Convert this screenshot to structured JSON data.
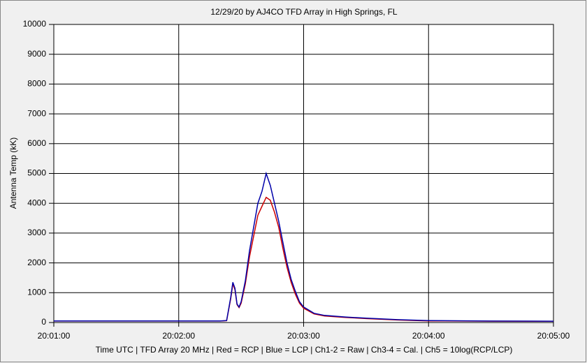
{
  "chart_data": {
    "type": "line",
    "title": "12/29/20  by  AJ4CO TFD Array  in  High Springs, FL",
    "y_label": "Antenna Temp (kK)",
    "footer": "Time UTC | TFD Array 20 MHz | Red = RCP | Blue = LCP | Ch1-2 = Raw | Ch3-4 = Cal. | Ch5 = 10log(RCP/LCP)",
    "x": [
      "20:01:00",
      "20:01:30",
      "20:02:00",
      "20:02:20",
      "20:02:23",
      "20:02:25",
      "20:02:26",
      "20:02:27",
      "20:02:28",
      "20:02:29",
      "20:02:30",
      "20:02:32",
      "20:02:34",
      "20:02:36",
      "20:02:38",
      "20:02:40",
      "20:02:42",
      "20:02:44",
      "20:02:46",
      "20:02:48",
      "20:02:50",
      "20:02:52",
      "20:02:54",
      "20:02:56",
      "20:02:58",
      "20:03:00",
      "20:03:05",
      "20:03:10",
      "20:03:20",
      "20:03:30",
      "20:03:45",
      "20:04:00",
      "20:04:30",
      "20:05:00"
    ],
    "series": [
      {
        "color": "#cc0000",
        "values": [
          50,
          50,
          50,
          50,
          60,
          800,
          1300,
          1100,
          600,
          500,
          650,
          1300,
          2200,
          2900,
          3600,
          3900,
          4200,
          4100,
          3700,
          3200,
          2500,
          1850,
          1350,
          950,
          650,
          480,
          290,
          220,
          170,
          130,
          85,
          55,
          45,
          40
        ]
      },
      {
        "color": "#0000aa",
        "values": [
          55,
          55,
          55,
          55,
          65,
          850,
          1350,
          1150,
          620,
          520,
          700,
          1400,
          2400,
          3200,
          4000,
          4400,
          5000,
          4600,
          4000,
          3400,
          2700,
          2000,
          1450,
          1050,
          700,
          520,
          310,
          240,
          185,
          145,
          95,
          65,
          50,
          45
        ]
      }
    ],
    "xlim": [
      "20:01:00",
      "20:05:00"
    ],
    "xticks": [
      "20:01:00",
      "20:02:00",
      "20:03:00",
      "20:04:00",
      "20:05:00"
    ],
    "ylim": [
      0,
      10000
    ],
    "yticks": [
      0,
      1000,
      2000,
      3000,
      4000,
      5000,
      6000,
      7000,
      8000,
      9000,
      10000
    ],
    "grid": true
  }
}
